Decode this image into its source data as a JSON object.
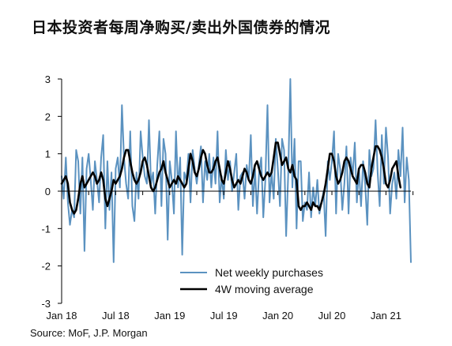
{
  "header": {
    "title": "日本投资者每周净购买/卖出外国债券的情况"
  },
  "footer": {
    "source": "Source: MoF, J.P. Morgan"
  },
  "colors": {
    "weekly": "#5b92c0",
    "moving_average": "#000000",
    "axis": "#000000"
  },
  "chart_data": {
    "type": "line",
    "title": "日本投资者每周净购买/卖出外国债券的情况",
    "xlabel": "",
    "ylabel": "",
    "x_ticks": [
      "Jan 18",
      "Jul 18",
      "Jan 19",
      "Jul 19",
      "Jan 20",
      "Jul 20",
      "Jan 21"
    ],
    "y_ticks": [
      "3",
      "2",
      "1",
      "0",
      "-1",
      "-2",
      "-3"
    ],
    "ylim": [
      -3,
      3
    ],
    "grid": false,
    "legend_position": "bottom-center",
    "week_start": "Jan 18",
    "series": [
      {
        "name": "Net weekly purchases",
        "values": [
          0.4,
          -0.2,
          0.9,
          -0.3,
          -0.9,
          -0.5,
          -0.7,
          1.1,
          0.8,
          -0.6,
          0.9,
          -1.6,
          0.6,
          1.0,
          0.3,
          -0.5,
          0.8,
          0.3,
          -0.3,
          0.9,
          1.5,
          -1.0,
          0.8,
          -0.5,
          0.5,
          -1.9,
          0.6,
          0.9,
          0.1,
          2.3,
          0.9,
          0.2,
          -0.2,
          1.6,
          -0.4,
          -0.8,
          0.5,
          -0.2,
          1.6,
          0.9,
          0.4,
          0.2,
          1.9,
          0.2,
          0.5,
          -0.6,
          0.7,
          1.6,
          -0.4,
          1.4,
          1.0,
          -1.3,
          0.8,
          0.3,
          -0.6,
          1.6,
          0.1,
          0.9,
          -1.7,
          0.5,
          0.3,
          1.0,
          -0.3,
          1.1,
          0.6,
          0.2,
          0.7,
          1.2,
          -0.3,
          0.8,
          0.3,
          1.0,
          0.1,
          0.9,
          0.2,
          1.6,
          -0.3,
          0.4,
          -0.2,
          1.1,
          0.3,
          0.8,
          0.0,
          0.5,
          1.0,
          -0.5,
          0.4,
          0.5,
          -0.2,
          0.7,
          0.3,
          1.5,
          -0.4,
          0.6,
          -0.6,
          0.5,
          0.9,
          -0.7,
          0.3,
          2.3,
          -0.3,
          0.5,
          -0.2,
          1.4,
          0.6,
          -0.4,
          1.4,
          1.1,
          -1.2,
          0.5,
          3.0,
          0.1,
          1.4,
          -1.0,
          0.8,
          0.8,
          -0.8,
          -0.3,
          -0.5,
          0.5,
          -0.7,
          0.1,
          -0.4,
          0.3,
          -0.6,
          -0.3,
          0.0,
          -1.2,
          0.8,
          0.3,
          0.8,
          1.6,
          -0.6,
          1.0,
          0.6,
          -0.5,
          0.2,
          1.2,
          -0.6,
          0.9,
          0.4,
          1.3,
          -0.3,
          0.6,
          -0.4,
          0.8,
          0.2,
          -0.9,
          1.1,
          0.4,
          0.6,
          1.9,
          0.5,
          -0.4,
          1.5,
          0.2,
          1.7,
          0.9,
          -0.6,
          0.2,
          0.5,
          -0.2,
          1.1,
          0.4,
          1.7,
          -0.3,
          0.9,
          0.3,
          -1.9
        ],
        "style": "thin-blue"
      },
      {
        "name": "4W moving average",
        "values": [
          0.2,
          0.3,
          0.4,
          0.2,
          -0.3,
          -0.5,
          -0.6,
          -0.5,
          -0.2,
          0.2,
          0.4,
          0.1,
          0.2,
          0.3,
          0.4,
          0.5,
          0.4,
          0.2,
          0.3,
          0.5,
          0.3,
          -0.2,
          -0.4,
          -0.2,
          0.0,
          0.3,
          0.2,
          0.3,
          0.4,
          0.6,
          0.9,
          1.1,
          1.1,
          0.8,
          0.5,
          0.3,
          0.2,
          0.3,
          0.5,
          0.8,
          0.9,
          0.7,
          0.4,
          0.1,
          0.0,
          0.1,
          0.3,
          0.5,
          0.6,
          0.8,
          0.5,
          0.3,
          0.1,
          0.2,
          0.3,
          0.2,
          0.4,
          0.3,
          0.2,
          0.1,
          0.2,
          0.6,
          1.0,
          0.8,
          0.5,
          0.4,
          0.6,
          0.9,
          1.1,
          1.0,
          0.7,
          0.5,
          0.5,
          0.6,
          0.8,
          0.9,
          0.6,
          0.3,
          0.2,
          0.5,
          0.8,
          0.6,
          0.3,
          0.1,
          0.2,
          0.3,
          0.2,
          0.4,
          0.6,
          0.5,
          0.3,
          0.2,
          0.4,
          0.7,
          0.8,
          0.6,
          0.4,
          0.3,
          0.4,
          0.5,
          0.4,
          0.5,
          0.9,
          1.3,
          1.3,
          1.0,
          0.7,
          0.8,
          0.9,
          0.6,
          0.5,
          0.7,
          0.4,
          0.3,
          -0.4,
          -0.5,
          -0.4,
          -0.4,
          -0.3,
          -0.4,
          -0.5,
          -0.3,
          -0.4,
          -0.4,
          -0.5,
          -0.3,
          -0.1,
          0.2,
          0.6,
          1.0,
          1.0,
          0.8,
          0.4,
          0.2,
          0.3,
          0.5,
          0.8,
          0.9,
          0.8,
          0.6,
          0.4,
          0.3,
          0.2,
          0.6,
          0.7,
          0.7,
          0.5,
          0.2,
          0.1,
          0.6,
          0.9,
          1.2,
          1.2,
          1.1,
          0.9,
          0.6,
          0.2,
          0.1,
          0.3,
          0.6,
          0.7,
          0.8,
          0.4,
          0.1
        ],
        "style": "thick-black"
      }
    ]
  }
}
